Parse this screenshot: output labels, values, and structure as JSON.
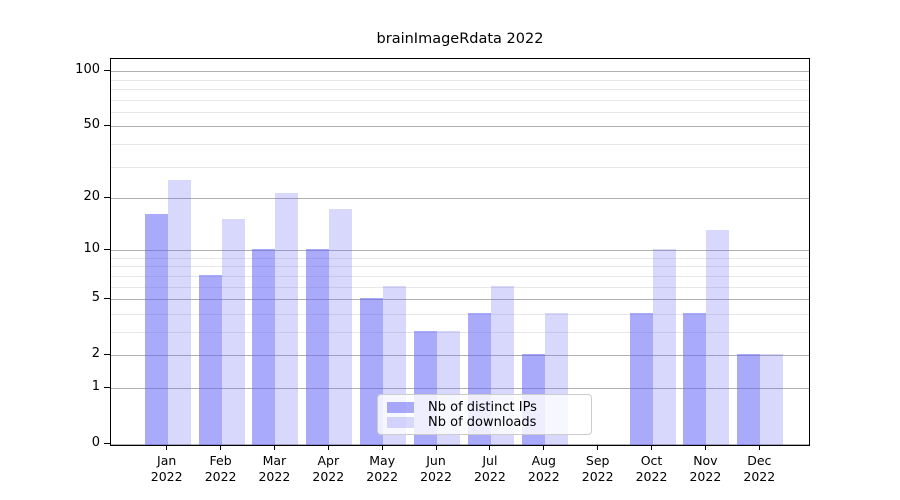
{
  "figure": {
    "title": "brainImageRdata 2022"
  },
  "chart_data": {
    "type": "bar",
    "title": "brainImageRdata 2022",
    "categories": [
      "Jan",
      "Feb",
      "Mar",
      "Apr",
      "May",
      "Jun",
      "Jul",
      "Aug",
      "Sep",
      "Oct",
      "Nov",
      "Dec"
    ],
    "category_year": "2022",
    "series": [
      {
        "name": "Nb of distinct IPs",
        "color_hex": "#6464f5",
        "opacity": 0.55,
        "values": [
          16,
          7,
          10,
          10,
          5,
          3,
          4,
          2,
          0,
          4,
          4,
          2
        ]
      },
      {
        "name": "Nb of downloads",
        "color_hex": "#6464f5",
        "opacity": 0.25,
        "values": [
          25,
          15,
          21,
          17,
          6,
          3,
          6,
          4,
          0,
          10,
          13,
          2
        ]
      }
    ],
    "xlabel": "",
    "ylabel": "",
    "y_axis": {
      "scale": "log(1+x)",
      "major_ticks": [
        100,
        50,
        20,
        10,
        5,
        2,
        1,
        0
      ],
      "minor_ticks": [
        90,
        80,
        70,
        60,
        40,
        30,
        9,
        8,
        7,
        6,
        4,
        3
      ],
      "top_value": 115
    },
    "grid": {
      "major_color": "#b0b0b0",
      "minor_color": "#e7e7e7",
      "enabled": true
    },
    "legend": {
      "position": "lower-center"
    }
  }
}
